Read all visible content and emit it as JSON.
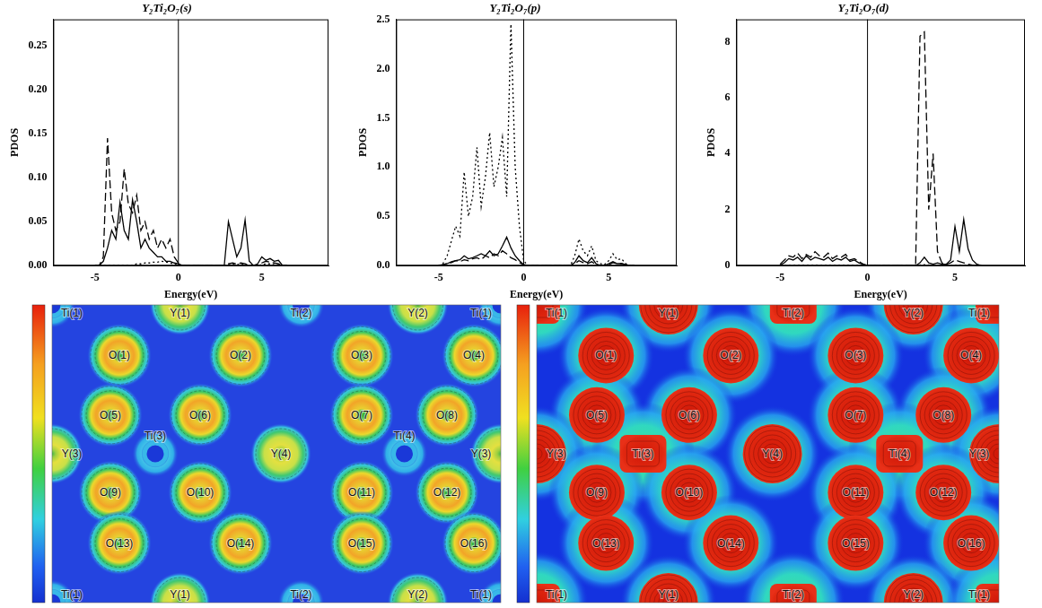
{
  "chart_data": [
    {
      "type": "line",
      "title": "Y₂Ti₂O₇(s)",
      "x_label": "Energy(eV)",
      "y_label": "PDOS",
      "xlim": [
        -7.5,
        9
      ],
      "xticks": [
        -5,
        0,
        5
      ],
      "ylim": [
        0,
        0.28
      ],
      "yticks": [
        {
          "value": 0,
          "label": "0.00"
        },
        {
          "value": 0.05,
          "label": "0.05"
        },
        {
          "value": 0.1,
          "label": "0.10"
        },
        {
          "value": 0.15,
          "label": "0.15"
        },
        {
          "value": 0.2,
          "label": "0.20"
        },
        {
          "value": 0.25,
          "label": "0.25"
        }
      ],
      "grid": false,
      "vertical_line": 0,
      "x": [
        -5,
        -4.75,
        -4.5,
        -4.25,
        -4,
        -3.75,
        -3.5,
        -3.25,
        -3,
        -2.75,
        -2.5,
        -2.25,
        -2,
        -1.75,
        -1.5,
        -1.25,
        -1,
        -0.75,
        -0.5,
        -0.25,
        0,
        0.25,
        0.5,
        0.75,
        1,
        1.25,
        1.5,
        1.75,
        2,
        2.25,
        2.5,
        2.75,
        3,
        3.25,
        3.5,
        3.75,
        4,
        4.25,
        4.5,
        4.75,
        5,
        5.25,
        5.5,
        5.75,
        6,
        6.25,
        6.5
      ],
      "series": [
        {
          "line_style": "dashed",
          "color": "#000000",
          "values": [
            0,
            0,
            0.01,
            0.145,
            0.06,
            0.04,
            0.05,
            0.11,
            0.07,
            0.06,
            0.08,
            0.04,
            0.05,
            0.03,
            0.04,
            0.02,
            0.03,
            0.02,
            0.03,
            0.01,
            0.003,
            0,
            0,
            0,
            0,
            0,
            0,
            0,
            0,
            0,
            0,
            0,
            0.002,
            0.003,
            0.002,
            0.003,
            0.002,
            0,
            0,
            0,
            0.003,
            0.005,
            0.004,
            0.003,
            0.002,
            0,
            0
          ]
        },
        {
          "line_style": "solid",
          "color": "#000000",
          "values": [
            0,
            0,
            0.005,
            0.02,
            0.04,
            0.03,
            0.072,
            0.04,
            0.03,
            0.075,
            0.05,
            0.02,
            0.03,
            0.02,
            0.015,
            0.01,
            0.01,
            0.005,
            0.005,
            0.003,
            0.002,
            0,
            0,
            0,
            0,
            0,
            0,
            0,
            0,
            0,
            0,
            0,
            0.05,
            0.03,
            0.01,
            0.02,
            0.052,
            0.005,
            0,
            0.002,
            0.01,
            0.006,
            0.008,
            0.005,
            0.006,
            0,
            0
          ]
        },
        {
          "line_style": "dotted",
          "color": "#000000",
          "values": [
            0,
            0,
            0,
            0,
            0,
            0,
            0,
            0,
            0,
            0,
            0.002,
            0.002,
            0.003,
            0.003,
            0.004,
            0.004,
            0.005,
            0.004,
            0.003,
            0.002,
            0.001,
            0,
            0,
            0,
            0,
            0,
            0,
            0,
            0,
            0,
            0,
            0,
            0.001,
            0.002,
            0.001,
            0.002,
            0.001,
            0,
            0,
            0,
            0.001,
            0.002,
            0.002,
            0.001,
            0.001,
            0,
            0
          ]
        }
      ]
    },
    {
      "type": "line",
      "title": "Y₂Ti₂O₇(p)",
      "x_label": "Energy(eV)",
      "y_label": "PDOS",
      "xlim": [
        -7.5,
        9
      ],
      "xticks": [
        -5,
        0,
        5
      ],
      "ylim": [
        0,
        2.5
      ],
      "yticks": [
        {
          "value": 0,
          "label": "0.0"
        },
        0.5,
        {
          "value": 1,
          "label": "1.0"
        },
        1.5,
        {
          "value": 2,
          "label": "2.0"
        },
        2.5
      ],
      "grid": false,
      "vertical_line": 0,
      "x": [
        -5,
        -4.75,
        -4.5,
        -4.25,
        -4,
        -3.75,
        -3.5,
        -3.25,
        -3,
        -2.75,
        -2.5,
        -2.25,
        -2,
        -1.75,
        -1.5,
        -1.25,
        -1,
        -0.75,
        -0.5,
        -0.25,
        0,
        0.25,
        0.5,
        0.75,
        1,
        1.25,
        1.5,
        1.75,
        2,
        2.25,
        2.5,
        2.75,
        3,
        3.25,
        3.5,
        3.75,
        4,
        4.25,
        4.5,
        4.75,
        5,
        5.25,
        5.5,
        5.75,
        6,
        6.25,
        6.5
      ],
      "series": [
        {
          "line_style": "dotted",
          "color": "#000000",
          "values": [
            0,
            0.02,
            0.1,
            0.25,
            0.4,
            0.3,
            0.95,
            0.5,
            0.7,
            1.2,
            0.6,
            0.9,
            1.35,
            0.8,
            1.0,
            1.3,
            0.7,
            2.45,
            1.0,
            0.4,
            0.05,
            0,
            0,
            0,
            0,
            0,
            0,
            0,
            0,
            0,
            0,
            0,
            0.1,
            0.27,
            0.15,
            0.1,
            0.2,
            0.05,
            0.02,
            0.01,
            0.05,
            0.12,
            0.06,
            0.07,
            0.02,
            0,
            0
          ]
        },
        {
          "line_style": "solid",
          "color": "#000000",
          "values": [
            0,
            0.01,
            0.02,
            0.04,
            0.05,
            0.06,
            0.1,
            0.07,
            0.08,
            0.1,
            0.12,
            0.1,
            0.15,
            0.1,
            0.12,
            0.2,
            0.29,
            0.18,
            0.1,
            0.05,
            0.01,
            0,
            0,
            0,
            0,
            0,
            0,
            0,
            0,
            0,
            0,
            0,
            0.03,
            0.1,
            0.05,
            0.03,
            0.08,
            0.02,
            0,
            0,
            0.02,
            0.04,
            0.02,
            0.02,
            0.01,
            0,
            0
          ]
        },
        {
          "line_style": "dashed",
          "color": "#000000",
          "values": [
            0,
            0.01,
            0.02,
            0.03,
            0.05,
            0.04,
            0.06,
            0.05,
            0.07,
            0.08,
            0.06,
            0.1,
            0.08,
            0.12,
            0.1,
            0.15,
            0.12,
            0.08,
            0.06,
            0.03,
            0.01,
            0,
            0,
            0,
            0,
            0,
            0,
            0,
            0,
            0,
            0,
            0,
            0.02,
            0.05,
            0.03,
            0.02,
            0.04,
            0.01,
            0,
            0,
            0.01,
            0.03,
            0.02,
            0.02,
            0.01,
            0,
            0
          ]
        }
      ]
    },
    {
      "type": "line",
      "title": "Y₂Ti₂O₇(d)",
      "x_label": "Energy(eV)",
      "y_label": "PDOS",
      "xlim": [
        -7.5,
        9
      ],
      "xticks": [
        -5,
        0,
        5
      ],
      "ylim": [
        0,
        8.8
      ],
      "yticks": [
        0,
        2,
        4,
        6,
        8
      ],
      "grid": false,
      "vertical_line": 0,
      "x": [
        -5,
        -4.75,
        -4.5,
        -4.25,
        -4,
        -3.75,
        -3.5,
        -3.25,
        -3,
        -2.75,
        -2.5,
        -2.25,
        -2,
        -1.75,
        -1.5,
        -1.25,
        -1,
        -0.75,
        -0.5,
        -0.25,
        0,
        0.25,
        0.5,
        0.75,
        1,
        1.25,
        1.5,
        1.75,
        2,
        2.25,
        2.5,
        2.75,
        3,
        3.25,
        3.5,
        3.75,
        4,
        4.25,
        4.5,
        4.75,
        5,
        5.25,
        5.5,
        5.75,
        6,
        6.25,
        6.5
      ],
      "series": [
        {
          "line_style": "dashed",
          "color": "#000000",
          "values": [
            0.05,
            0.2,
            0.35,
            0.3,
            0.45,
            0.25,
            0.4,
            0.3,
            0.5,
            0.35,
            0.3,
            0.45,
            0.25,
            0.35,
            0.3,
            0.4,
            0.2,
            0.25,
            0.15,
            0.05,
            0,
            0,
            0,
            0,
            0,
            0,
            0,
            0,
            0,
            0,
            0,
            0,
            8.2,
            8.35,
            2.0,
            4.0,
            0.5,
            0.1,
            0.05,
            0.1,
            0.2,
            0.15,
            0.1,
            0.05,
            0.02,
            0,
            0
          ]
        },
        {
          "line_style": "solid",
          "color": "#000000",
          "values": [
            0.02,
            0.1,
            0.25,
            0.2,
            0.3,
            0.15,
            0.35,
            0.2,
            0.3,
            0.25,
            0.2,
            0.3,
            0.15,
            0.25,
            0.2,
            0.3,
            0.15,
            0.2,
            0.1,
            0.05,
            0,
            0,
            0,
            0,
            0,
            0,
            0,
            0,
            0,
            0,
            0,
            0,
            0.1,
            0.3,
            0.1,
            0.05,
            0.1,
            0.05,
            0.05,
            0.2,
            1.4,
            0.5,
            1.65,
            0.6,
            0.2,
            0.05,
            0
          ]
        },
        {
          "line_style": "dotted",
          "color": "#000000",
          "values": [
            0,
            0,
            0.01,
            0.01,
            0.02,
            0.01,
            0.02,
            0.01,
            0.02,
            0.01,
            0.01,
            0.02,
            0.01,
            0.01,
            0.01,
            0.02,
            0.01,
            0.01,
            0.01,
            0,
            0,
            0,
            0,
            0,
            0,
            0,
            0,
            0,
            0,
            0,
            0,
            0,
            0.02,
            0.03,
            0.02,
            0.01,
            0.02,
            0.01,
            0,
            0,
            0.01,
            0.02,
            0.02,
            0.01,
            0.01,
            0,
            0
          ]
        }
      ]
    }
  ],
  "maps": [
    {
      "rows": [
        [
          "Ti(1)",
          "Y(1)",
          "Ti(2)",
          "Y(2)",
          "Ti(1)"
        ],
        [
          "O(1)",
          "O(2)",
          "O(3)",
          "O(4)"
        ],
        [
          "O(5)",
          "O(6)",
          "O(7)",
          "O(8)"
        ],
        [
          "Y(3)",
          "Ti(3)",
          "Y(4)",
          "Ti(4)",
          "Y(3)"
        ],
        [
          "O(9)",
          "O(10)",
          "O(11)",
          "O(12)"
        ],
        [
          "O(13)",
          "O(14)",
          "O(15)",
          "O(16)"
        ],
        [
          "Ti(1)",
          "Y(1)",
          "Ti(2)",
          "Y(2)",
          "Ti(1)"
        ]
      ]
    },
    {
      "rows": [
        [
          "Ti(1)",
          "Y(1)",
          "Ti(2)",
          "Y(2)",
          "Ti(1)"
        ],
        [
          "O(1)",
          "O(2)",
          "O(3)",
          "O(4)"
        ],
        [
          "O(5)",
          "O(6)",
          "O(7)",
          "O(8)"
        ],
        [
          "Y(3)",
          "Ti(3)",
          "Y(4)",
          "Ti(4)",
          "Y(3)"
        ],
        [
          "O(9)",
          "O(10)",
          "O(11)",
          "O(12)"
        ],
        [
          "O(13)",
          "O(14)",
          "O(15)",
          "O(16)"
        ],
        [
          "Ti(1)",
          "Y(1)",
          "Ti(2)",
          "Y(2)",
          "Ti(1)"
        ]
      ]
    }
  ]
}
